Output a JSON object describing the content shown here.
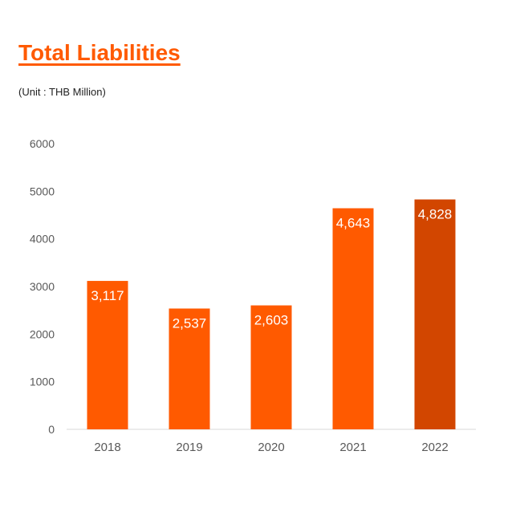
{
  "page": {
    "title": "Total Liabilities",
    "unit": "(Unit : THB Million)"
  },
  "chart_data": {
    "type": "bar",
    "categories": [
      "2018",
      "2019",
      "2020",
      "2021",
      "2022"
    ],
    "values": [
      3117,
      2537,
      2603,
      4643,
      4828
    ],
    "data_labels": [
      "3,117",
      "2,537",
      "2,603",
      "4,643",
      "4,828"
    ],
    "yticks": [
      "0",
      "1000",
      "2000",
      "3000",
      "4000",
      "5000",
      "6000"
    ],
    "ylim": [
      0,
      6000
    ],
    "grid": false,
    "legend": "none",
    "colors": {
      "bar": "#ff5a00",
      "highlight": "#d24600",
      "title": "#ff5a00",
      "axis": "#d9d9d9"
    },
    "highlight_index": 4
  }
}
